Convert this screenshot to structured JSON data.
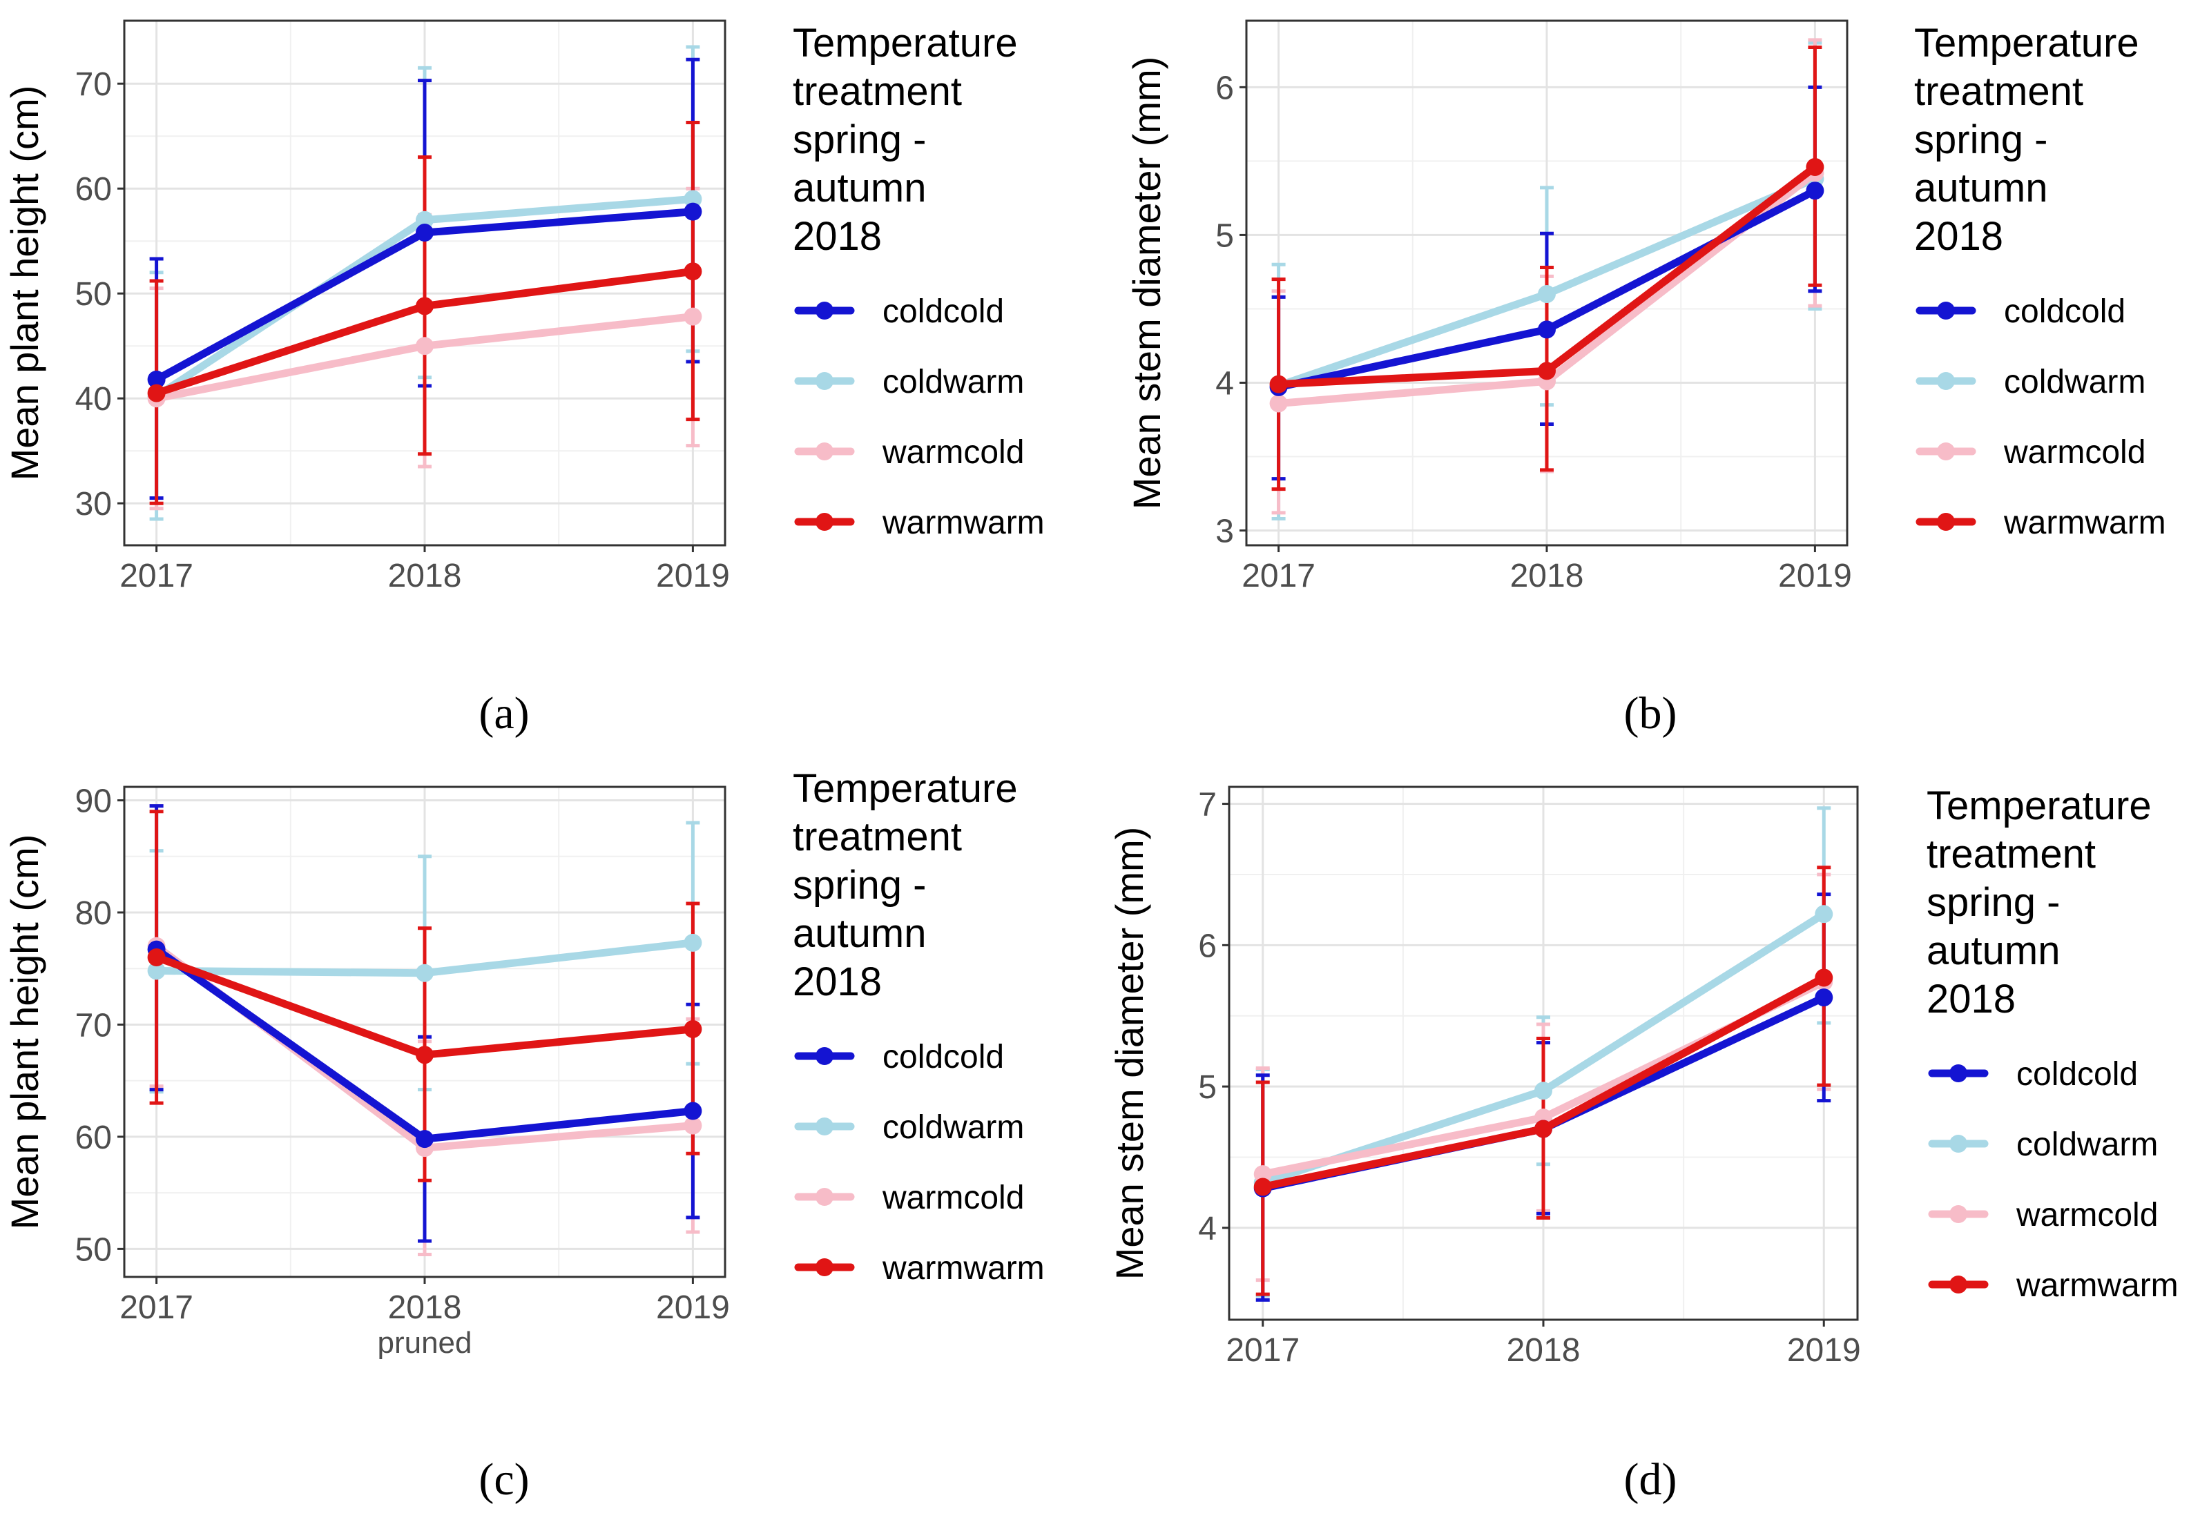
{
  "series_colors": {
    "coldcold": "#1414d2",
    "coldwarm": "#a8d8e6",
    "warmcold": "#f7bcc8",
    "warmwarm": "#e01515"
  },
  "chart_data": [
    {
      "id": "a",
      "type": "line",
      "caption": "(a)",
      "xlabel": "",
      "ylabel": "Mean plant height (cm)",
      "categories": [
        "2017",
        "2018",
        "2019"
      ],
      "category_sublabels": [
        "",
        "",
        ""
      ],
      "xlim": [
        0.88,
        3.12
      ],
      "ylim": [
        26,
        76
      ],
      "yticks": [
        30,
        40,
        50,
        60,
        70
      ],
      "grid": true,
      "legend": {
        "title_lines": [
          "Temperature",
          "treatment",
          "spring -",
          "autumn",
          "2018"
        ],
        "position": "right",
        "items": [
          "coldcold",
          "coldwarm",
          "warmcold",
          "warmwarm"
        ]
      },
      "series": [
        {
          "name": "coldwarm",
          "values": [
            40.2,
            57.0,
            59.0
          ],
          "err_low": [
            28.5,
            42.0,
            44.5
          ],
          "err_high": [
            52.0,
            71.5,
            73.5
          ]
        },
        {
          "name": "warmcold",
          "values": [
            40.0,
            45.0,
            47.8
          ],
          "err_low": [
            29.5,
            33.5,
            35.5
          ],
          "err_high": [
            50.5,
            57.5,
            60.0
          ]
        },
        {
          "name": "coldcold",
          "values": [
            41.8,
            55.8,
            57.8
          ],
          "err_low": [
            30.5,
            41.2,
            43.5
          ],
          "err_high": [
            53.3,
            70.3,
            72.3
          ]
        },
        {
          "name": "warmwarm",
          "values": [
            40.5,
            48.8,
            52.1
          ],
          "err_low": [
            30.0,
            34.7,
            38.0
          ],
          "err_high": [
            51.2,
            63.0,
            66.3
          ]
        }
      ]
    },
    {
      "id": "b",
      "type": "line",
      "caption": "(b)",
      "xlabel": "",
      "ylabel": "Mean stem diameter (mm)",
      "categories": [
        "2017",
        "2018",
        "2019"
      ],
      "category_sublabels": [
        "",
        "",
        ""
      ],
      "xlim": [
        0.88,
        3.12
      ],
      "ylim": [
        2.9,
        6.45
      ],
      "yticks": [
        3,
        4,
        5,
        6
      ],
      "grid": true,
      "legend": {
        "title_lines": [
          "Temperature",
          "treatment",
          "spring -",
          "autumn",
          "2018"
        ],
        "position": "right",
        "items": [
          "coldcold",
          "coldwarm",
          "warmcold",
          "warmwarm"
        ]
      },
      "series": [
        {
          "name": "coldwarm",
          "values": [
            3.98,
            4.6,
            5.38
          ],
          "err_low": [
            3.08,
            3.85,
            4.5
          ],
          "err_high": [
            4.8,
            5.32,
            6.3
          ]
        },
        {
          "name": "warmcold",
          "values": [
            3.86,
            4.01,
            5.42
          ],
          "err_low": [
            3.12,
            3.4,
            4.52
          ],
          "err_high": [
            4.62,
            4.72,
            6.32
          ]
        },
        {
          "name": "coldcold",
          "values": [
            3.97,
            4.36,
            5.3
          ],
          "err_low": [
            3.35,
            3.72,
            4.62
          ],
          "err_high": [
            4.58,
            5.01,
            6.0
          ]
        },
        {
          "name": "warmwarm",
          "values": [
            3.99,
            4.08,
            5.46
          ],
          "err_low": [
            3.28,
            3.41,
            4.66
          ],
          "err_high": [
            4.7,
            4.78,
            6.27
          ]
        }
      ]
    },
    {
      "id": "c",
      "type": "line",
      "caption": "(c)",
      "xlabel": "",
      "ylabel": "Mean plant height (cm)",
      "categories": [
        "2017",
        "2018",
        "2019"
      ],
      "category_sublabels": [
        "",
        "pruned",
        ""
      ],
      "xlim": [
        0.88,
        3.12
      ],
      "ylim": [
        47.5,
        91.2
      ],
      "yticks": [
        50,
        60,
        70,
        80,
        90
      ],
      "grid": true,
      "legend": {
        "title_lines": [
          "Temperature",
          "treatment",
          "spring -",
          "autumn",
          "2018"
        ],
        "position": "right",
        "items": [
          "coldcold",
          "coldwarm",
          "warmcold",
          "warmwarm"
        ]
      },
      "series": [
        {
          "name": "coldwarm",
          "values": [
            74.8,
            74.6,
            77.3
          ],
          "err_low": [
            64.0,
            64.2,
            66.5
          ],
          "err_high": [
            85.5,
            85.0,
            88.0
          ]
        },
        {
          "name": "warmcold",
          "values": [
            77.0,
            59.0,
            61.0
          ],
          "err_low": [
            64.5,
            49.5,
            51.5
          ],
          "err_high": [
            89.5,
            68.5,
            70.5
          ]
        },
        {
          "name": "coldcold",
          "values": [
            76.7,
            59.8,
            62.3
          ],
          "err_low": [
            64.2,
            50.7,
            52.8
          ],
          "err_high": [
            89.5,
            68.9,
            71.8
          ]
        },
        {
          "name": "warmwarm",
          "values": [
            76.0,
            67.3,
            69.6
          ],
          "err_low": [
            63.0,
            56.1,
            58.5
          ],
          "err_high": [
            89.0,
            78.6,
            80.8
          ]
        }
      ]
    },
    {
      "id": "d",
      "type": "line",
      "caption": "(d)",
      "xlabel": "",
      "ylabel": "Mean stem diameter (mm)",
      "categories": [
        "2017",
        "2018",
        "2019"
      ],
      "category_sublabels": [
        "",
        "",
        ""
      ],
      "xlim": [
        0.88,
        3.12
      ],
      "ylim": [
        3.35,
        7.12
      ],
      "yticks": [
        4,
        5,
        6,
        7
      ],
      "grid": true,
      "legend": {
        "title_lines": [
          "Temperature",
          "treatment",
          "spring -",
          "autumn",
          "2018"
        ],
        "position": "right",
        "items": [
          "coldcold",
          "coldwarm",
          "warmcold",
          "warmwarm"
        ]
      },
      "series": [
        {
          "name": "coldwarm",
          "values": [
            4.32,
            4.97,
            6.22
          ],
          "err_low": [
            3.52,
            4.45,
            5.45
          ],
          "err_high": [
            5.12,
            5.49,
            6.97
          ]
        },
        {
          "name": "warmcold",
          "values": [
            4.38,
            4.78,
            5.74
          ],
          "err_low": [
            3.63,
            4.12,
            4.98
          ],
          "err_high": [
            5.13,
            5.44,
            6.5
          ]
        },
        {
          "name": "coldcold",
          "values": [
            4.28,
            4.7,
            5.63
          ],
          "err_low": [
            3.49,
            4.1,
            4.9
          ],
          "err_high": [
            5.08,
            5.31,
            6.36
          ]
        },
        {
          "name": "warmwarm",
          "values": [
            4.29,
            4.7,
            5.77
          ],
          "err_low": [
            3.53,
            4.07,
            5.01
          ],
          "err_high": [
            5.03,
            5.34,
            6.55
          ]
        }
      ]
    }
  ]
}
